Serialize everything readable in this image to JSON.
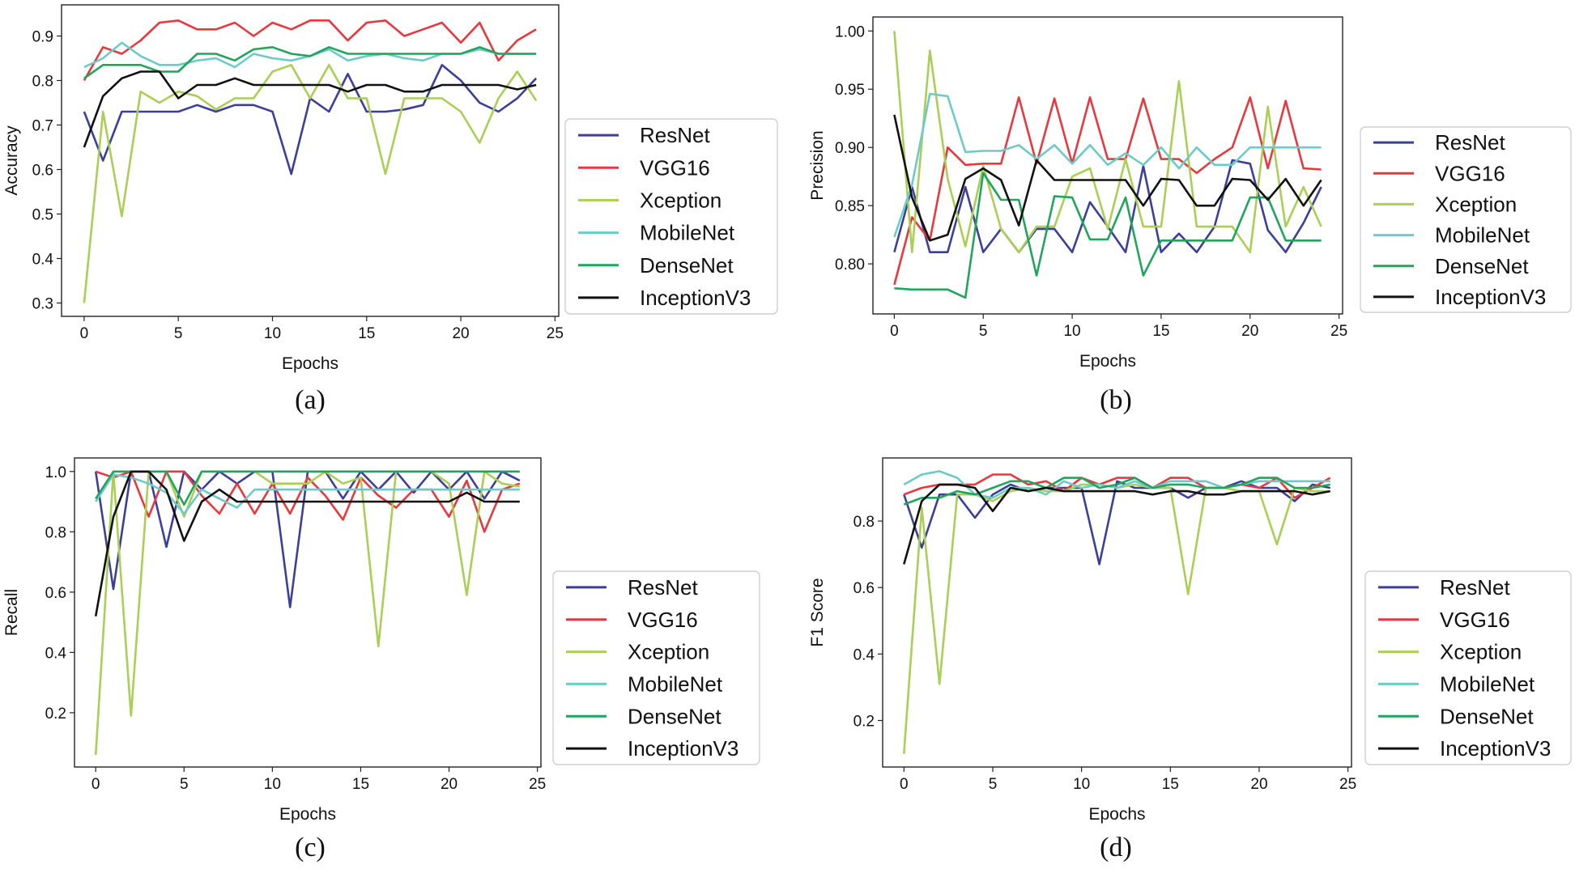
{
  "colors": {
    "ResNet": "#3b3f9a",
    "VGG16": "#e8383d",
    "Xception": "#a9cf54",
    "MobileNet": "#6ccbc8",
    "DenseNet": "#1fa55c",
    "InceptionV3": "#111111"
  },
  "chart_data": [
    {
      "type": "line",
      "caption": "(a)",
      "xlabel": "Epochs",
      "ylabel": "Accuracy",
      "xlim": [
        -1.2,
        25.2
      ],
      "ylim": [
        0.27,
        0.97
      ],
      "xticks": [
        0,
        5,
        10,
        15,
        20,
        25
      ],
      "yticks": [
        0.3,
        0.4,
        0.5,
        0.6,
        0.7,
        0.8,
        0.9
      ],
      "x": [
        0,
        1,
        2,
        3,
        4,
        5,
        6,
        7,
        8,
        9,
        10,
        11,
        12,
        13,
        14,
        15,
        16,
        17,
        18,
        19,
        20,
        21,
        22,
        23,
        24
      ],
      "series": [
        {
          "name": "ResNet",
          "values": [
            0.73,
            0.62,
            0.73,
            0.73,
            0.73,
            0.73,
            0.745,
            0.73,
            0.745,
            0.745,
            0.73,
            0.59,
            0.76,
            0.73,
            0.815,
            0.73,
            0.73,
            0.735,
            0.745,
            0.835,
            0.8,
            0.75,
            0.73,
            0.76,
            0.805
          ]
        },
        {
          "name": "VGG16",
          "values": [
            0.8,
            0.875,
            0.86,
            0.89,
            0.93,
            0.935,
            0.915,
            0.915,
            0.93,
            0.9,
            0.93,
            0.915,
            0.935,
            0.935,
            0.89,
            0.93,
            0.935,
            0.9,
            0.915,
            0.93,
            0.885,
            0.93,
            0.845,
            0.89,
            0.915
          ]
        },
        {
          "name": "Xception",
          "values": [
            0.3,
            0.73,
            0.495,
            0.775,
            0.75,
            0.775,
            0.765,
            0.735,
            0.76,
            0.76,
            0.82,
            0.835,
            0.76,
            0.835,
            0.76,
            0.76,
            0.59,
            0.76,
            0.76,
            0.76,
            0.73,
            0.66,
            0.76,
            0.82,
            0.755
          ]
        },
        {
          "name": "MobileNet",
          "values": [
            0.83,
            0.85,
            0.885,
            0.855,
            0.835,
            0.835,
            0.845,
            0.85,
            0.83,
            0.86,
            0.85,
            0.845,
            0.855,
            0.87,
            0.845,
            0.855,
            0.86,
            0.85,
            0.845,
            0.86,
            0.86,
            0.87,
            0.86,
            0.86,
            0.86
          ]
        },
        {
          "name": "DenseNet",
          "values": [
            0.805,
            0.835,
            0.835,
            0.835,
            0.82,
            0.82,
            0.86,
            0.86,
            0.845,
            0.87,
            0.875,
            0.86,
            0.855,
            0.875,
            0.86,
            0.86,
            0.86,
            0.86,
            0.86,
            0.86,
            0.86,
            0.875,
            0.86,
            0.86,
            0.86
          ]
        },
        {
          "name": "InceptionV3",
          "values": [
            0.65,
            0.765,
            0.805,
            0.82,
            0.82,
            0.76,
            0.79,
            0.79,
            0.805,
            0.79,
            0.79,
            0.79,
            0.79,
            0.79,
            0.775,
            0.79,
            0.79,
            0.775,
            0.775,
            0.79,
            0.79,
            0.79,
            0.79,
            0.78,
            0.79
          ]
        }
      ]
    },
    {
      "type": "line",
      "caption": "(b)",
      "xlabel": "Epochs",
      "ylabel": "Precision",
      "xlim": [
        -1.2,
        25.2
      ],
      "ylim": [
        0.757,
        1.012
      ],
      "xticks": [
        0,
        5,
        10,
        15,
        20,
        25
      ],
      "yticks": [
        "0.80",
        "0.85",
        "0.90",
        "0.95",
        "1.00"
      ],
      "x": [
        0,
        1,
        2,
        3,
        4,
        5,
        6,
        7,
        8,
        9,
        10,
        11,
        12,
        13,
        14,
        15,
        16,
        17,
        18,
        19,
        20,
        21,
        22,
        23,
        24
      ],
      "series": [
        {
          "name": "ResNet",
          "values": [
            0.81,
            0.866,
            0.81,
            0.81,
            0.866,
            0.81,
            0.83,
            0.81,
            0.83,
            0.83,
            0.81,
            0.853,
            0.832,
            0.81,
            0.884,
            0.81,
            0.826,
            0.81,
            0.832,
            0.889,
            0.886,
            0.829,
            0.81,
            0.835,
            0.866
          ]
        },
        {
          "name": "VGG16",
          "values": [
            0.782,
            0.84,
            0.82,
            0.9,
            0.885,
            0.886,
            0.886,
            0.943,
            0.886,
            0.942,
            0.886,
            0.943,
            0.89,
            0.89,
            0.942,
            0.89,
            0.89,
            0.878,
            0.89,
            0.9,
            0.943,
            0.882,
            0.94,
            0.882,
            0.881
          ]
        },
        {
          "name": "Xception",
          "values": [
            1.0,
            0.81,
            0.983,
            0.873,
            0.815,
            0.884,
            0.83,
            0.81,
            0.832,
            0.832,
            0.875,
            0.882,
            0.83,
            0.89,
            0.832,
            0.832,
            0.957,
            0.832,
            0.832,
            0.832,
            0.81,
            0.935,
            0.832,
            0.866,
            0.832
          ]
        },
        {
          "name": "MobileNet",
          "values": [
            0.823,
            0.868,
            0.946,
            0.944,
            0.896,
            0.897,
            0.897,
            0.902,
            0.89,
            0.902,
            0.886,
            0.902,
            0.885,
            0.895,
            0.885,
            0.9,
            0.882,
            0.9,
            0.885,
            0.885,
            0.9,
            0.9,
            0.9,
            0.9,
            0.9
          ]
        },
        {
          "name": "DenseNet",
          "values": [
            0.779,
            0.778,
            0.778,
            0.778,
            0.771,
            0.878,
            0.855,
            0.855,
            0.79,
            0.858,
            0.857,
            0.821,
            0.821,
            0.857,
            0.79,
            0.82,
            0.82,
            0.82,
            0.82,
            0.82,
            0.857,
            0.857,
            0.82,
            0.82,
            0.82
          ]
        },
        {
          "name": "InceptionV3",
          "values": [
            0.928,
            0.857,
            0.82,
            0.825,
            0.873,
            0.882,
            0.872,
            0.833,
            0.889,
            0.872,
            0.872,
            0.872,
            0.872,
            0.872,
            0.85,
            0.873,
            0.872,
            0.85,
            0.85,
            0.873,
            0.872,
            0.855,
            0.873,
            0.85,
            0.872
          ]
        }
      ]
    },
    {
      "type": "line",
      "caption": "(c)",
      "xlabel": "Epochs",
      "ylabel": "Recall",
      "xlim": [
        -1.2,
        25.2
      ],
      "ylim": [
        0.02,
        1.045
      ],
      "xticks": [
        0,
        5,
        10,
        15,
        20,
        25
      ],
      "yticks": [
        0.2,
        0.4,
        0.6,
        0.8,
        "1.0"
      ],
      "x": [
        0,
        1,
        2,
        3,
        4,
        5,
        6,
        7,
        8,
        9,
        10,
        11,
        12,
        13,
        14,
        15,
        16,
        17,
        18,
        19,
        20,
        21,
        22,
        23,
        24
      ],
      "series": [
        {
          "name": "ResNet",
          "values": [
            1.0,
            0.61,
            1.0,
            1.0,
            0.75,
            1.0,
            0.94,
            1.0,
            0.96,
            1.0,
            1.0,
            0.55,
            1.0,
            1.0,
            0.91,
            1.0,
            0.94,
            1.0,
            0.93,
            1.0,
            0.94,
            1.0,
            0.91,
            1.0,
            0.97
          ]
        },
        {
          "name": "VGG16",
          "values": [
            1.0,
            0.98,
            1.0,
            0.85,
            1.0,
            1.0,
            0.92,
            0.86,
            0.96,
            0.86,
            0.96,
            0.86,
            0.98,
            0.92,
            0.84,
            0.98,
            0.92,
            0.88,
            0.94,
            0.94,
            0.85,
            0.97,
            0.8,
            0.94,
            0.96
          ]
        },
        {
          "name": "Xception",
          "values": [
            0.06,
            1.0,
            0.19,
            1.0,
            1.0,
            0.85,
            1.0,
            1.0,
            1.0,
            1.0,
            0.96,
            0.96,
            0.96,
            1.0,
            0.96,
            0.98,
            0.42,
            1.0,
            1.0,
            1.0,
            0.96,
            0.59,
            1.0,
            0.96,
            0.95
          ]
        },
        {
          "name": "MobileNet",
          "values": [
            0.9,
            0.99,
            0.98,
            0.96,
            0.93,
            0.86,
            0.94,
            0.91,
            0.88,
            0.94,
            0.94,
            0.94,
            0.94,
            0.94,
            0.94,
            0.94,
            0.94,
            0.94,
            0.94,
            0.94,
            0.94,
            0.94,
            0.94,
            0.94,
            0.94
          ]
        },
        {
          "name": "DenseNet",
          "values": [
            0.91,
            1.0,
            1.0,
            1.0,
            1.0,
            0.89,
            1.0,
            1.0,
            1.0,
            1.0,
            1.0,
            1.0,
            1.0,
            1.0,
            1.0,
            1.0,
            1.0,
            1.0,
            1.0,
            1.0,
            1.0,
            1.0,
            1.0,
            1.0,
            1.0
          ]
        },
        {
          "name": "InceptionV3",
          "values": [
            0.52,
            0.85,
            1.0,
            1.0,
            0.94,
            0.77,
            0.9,
            0.94,
            0.9,
            0.9,
            0.9,
            0.9,
            0.9,
            0.9,
            0.9,
            0.9,
            0.9,
            0.9,
            0.9,
            0.9,
            0.9,
            0.93,
            0.9,
            0.9,
            0.9
          ]
        }
      ]
    },
    {
      "type": "line",
      "caption": "(d)",
      "xlabel": "Epochs",
      "ylabel": "F1 Score",
      "xlim": [
        -1.2,
        25.2
      ],
      "ylim": [
        0.06,
        0.99
      ],
      "xticks": [
        0,
        5,
        10,
        15,
        20,
        25
      ],
      "yticks": [
        0.2,
        0.4,
        0.6,
        0.8
      ],
      "x": [
        0,
        1,
        2,
        3,
        4,
        5,
        6,
        7,
        8,
        9,
        10,
        11,
        12,
        13,
        14,
        15,
        16,
        17,
        18,
        19,
        20,
        21,
        22,
        23,
        24
      ],
      "series": [
        {
          "name": "ResNet",
          "values": [
            0.88,
            0.72,
            0.88,
            0.88,
            0.81,
            0.88,
            0.91,
            0.89,
            0.9,
            0.9,
            0.9,
            0.67,
            0.92,
            0.9,
            0.9,
            0.9,
            0.87,
            0.9,
            0.9,
            0.92,
            0.9,
            0.9,
            0.86,
            0.91,
            0.9
          ]
        },
        {
          "name": "VGG16",
          "values": [
            0.88,
            0.9,
            0.91,
            0.91,
            0.91,
            0.94,
            0.94,
            0.91,
            0.92,
            0.89,
            0.93,
            0.91,
            0.93,
            0.93,
            0.9,
            0.93,
            0.93,
            0.9,
            0.9,
            0.91,
            0.9,
            0.93,
            0.87,
            0.9,
            0.93
          ]
        },
        {
          "name": "Xception",
          "values": [
            0.1,
            0.84,
            0.31,
            0.88,
            0.88,
            0.86,
            0.89,
            0.9,
            0.89,
            0.89,
            0.91,
            0.91,
            0.9,
            0.91,
            0.9,
            0.9,
            0.58,
            0.9,
            0.9,
            0.89,
            0.89,
            0.73,
            0.9,
            0.89,
            0.89
          ]
        },
        {
          "name": "MobileNet",
          "values": [
            0.91,
            0.94,
            0.95,
            0.93,
            0.88,
            0.87,
            0.9,
            0.9,
            0.88,
            0.92,
            0.9,
            0.91,
            0.9,
            0.92,
            0.9,
            0.92,
            0.92,
            0.92,
            0.9,
            0.91,
            0.92,
            0.92,
            0.92,
            0.92,
            0.92
          ]
        },
        {
          "name": "DenseNet",
          "values": [
            0.85,
            0.87,
            0.87,
            0.89,
            0.88,
            0.9,
            0.92,
            0.92,
            0.9,
            0.93,
            0.93,
            0.9,
            0.91,
            0.93,
            0.9,
            0.91,
            0.91,
            0.9,
            0.9,
            0.91,
            0.93,
            0.93,
            0.9,
            0.9,
            0.91
          ]
        },
        {
          "name": "InceptionV3",
          "values": [
            0.67,
            0.86,
            0.91,
            0.91,
            0.9,
            0.83,
            0.9,
            0.89,
            0.9,
            0.89,
            0.89,
            0.89,
            0.89,
            0.89,
            0.88,
            0.89,
            0.89,
            0.88,
            0.88,
            0.89,
            0.89,
            0.89,
            0.89,
            0.88,
            0.89
          ]
        }
      ]
    }
  ]
}
